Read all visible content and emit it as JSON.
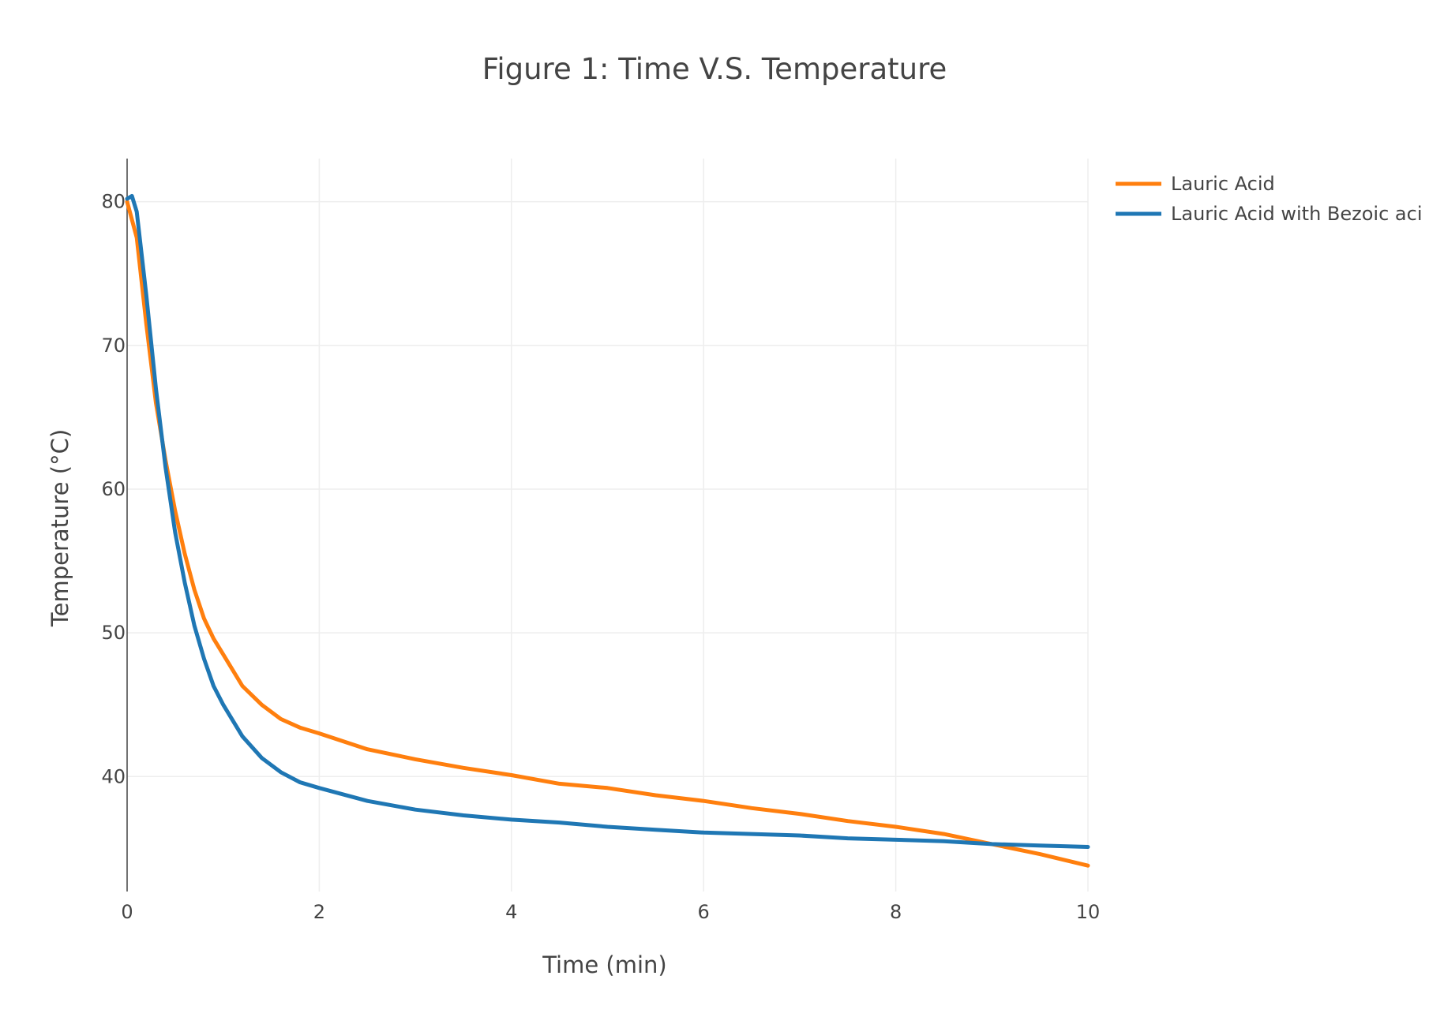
{
  "chart_data": {
    "type": "line",
    "title": "Figure 1: Time V.S. Temperature",
    "xlabel": "Time (min)",
    "ylabel": "Temperature (°C)",
    "xlim": [
      0,
      10
    ],
    "ylim": [
      32,
      83
    ],
    "xticks": [
      0,
      2,
      4,
      6,
      8,
      10
    ],
    "yticks": [
      40,
      50,
      60,
      70,
      80
    ],
    "grid": true,
    "legend_position": "top-right, outside plot",
    "series": [
      {
        "name": "Lauric Acid",
        "color": "#ff7f0e",
        "x": [
          0,
          0.1,
          0.2,
          0.3,
          0.4,
          0.5,
          0.6,
          0.7,
          0.8,
          0.9,
          1.0,
          1.2,
          1.4,
          1.6,
          1.8,
          2.0,
          2.5,
          3.0,
          3.5,
          4.0,
          4.5,
          5.0,
          5.5,
          6.0,
          6.5,
          7.0,
          7.5,
          8.0,
          8.5,
          9.0,
          9.5,
          10.0
        ],
        "y": [
          80.0,
          77.5,
          71.5,
          66.0,
          62.0,
          58.5,
          55.5,
          53.0,
          51.0,
          49.6,
          48.5,
          46.3,
          45.0,
          44.0,
          43.4,
          43.0,
          41.9,
          41.2,
          40.6,
          40.1,
          39.5,
          39.2,
          38.7,
          38.3,
          37.8,
          37.4,
          36.9,
          36.5,
          36.0,
          35.3,
          34.6,
          33.8
        ]
      },
      {
        "name": "Lauric Acid with Bezoic aci",
        "color": "#1f77b4",
        "x": [
          0,
          0.05,
          0.1,
          0.2,
          0.3,
          0.4,
          0.5,
          0.6,
          0.7,
          0.8,
          0.9,
          1.0,
          1.2,
          1.4,
          1.6,
          1.8,
          2.0,
          2.5,
          3.0,
          3.5,
          4.0,
          4.5,
          5.0,
          5.5,
          6.0,
          6.5,
          7.0,
          7.5,
          8.0,
          8.5,
          9.0,
          9.5,
          10.0
        ],
        "y": [
          80.2,
          80.4,
          79.3,
          73.5,
          67.0,
          61.5,
          57.0,
          53.5,
          50.5,
          48.2,
          46.3,
          45.0,
          42.8,
          41.3,
          40.3,
          39.6,
          39.2,
          38.3,
          37.7,
          37.3,
          37.0,
          36.8,
          36.5,
          36.3,
          36.1,
          36.0,
          35.9,
          35.7,
          35.6,
          35.5,
          35.3,
          35.2,
          35.1
        ]
      }
    ]
  }
}
